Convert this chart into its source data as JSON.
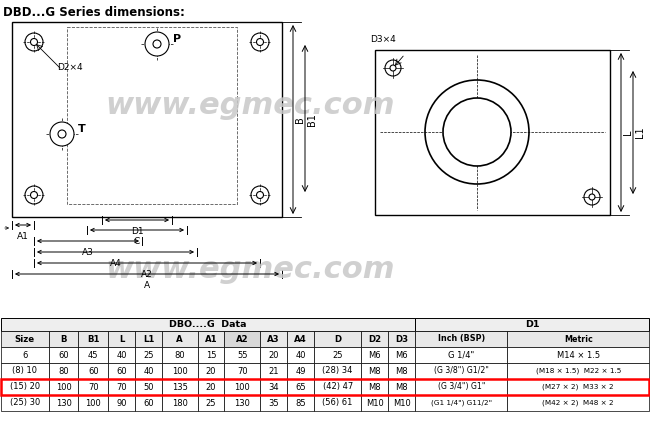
{
  "title": "DBD...G Series dimensions:",
  "watermark": "www.egmec.com",
  "bg_color": "#ffffff",
  "table_header_title": "DBO....G  Data",
  "table_header_right": "D1",
  "table_header": [
    "Size",
    "B",
    "B1",
    "L",
    "L1",
    "A",
    "A1",
    "A2",
    "A3",
    "A4",
    "D",
    "D2",
    "D3",
    "Inch (BSP)",
    "Metric"
  ],
  "table_rows": [
    [
      "6",
      "60",
      "45",
      "40",
      "25",
      "80",
      "15",
      "55",
      "20",
      "40",
      "25",
      "M6",
      "M6",
      "G 1/4\"",
      "M14 × 1.5"
    ],
    [
      "(8) 10",
      "80",
      "60",
      "60",
      "40",
      "100",
      "20",
      "70",
      "21",
      "49",
      "(28) 34",
      "M8",
      "M8",
      "(G 3/8\") G1/2\"",
      "(M18 × 1.5)  M22 × 1.5"
    ],
    [
      "(15) 20",
      "100",
      "70",
      "70",
      "50",
      "135",
      "20",
      "100",
      "34",
      "65",
      "(42) 47",
      "M8",
      "M8",
      "(G 3/4\") G1\"",
      "(M27 × 2)  M33 × 2"
    ],
    [
      "(25) 30",
      "130",
      "100",
      "90",
      "60",
      "180",
      "25",
      "130",
      "35",
      "85",
      "(56) 61",
      "M10",
      "M10",
      "(G1 1/4\") G11/2\"",
      "(M42 × 2)  M48 × 2"
    ]
  ],
  "highlight_row": 2,
  "highlight_color": "#ff0000"
}
